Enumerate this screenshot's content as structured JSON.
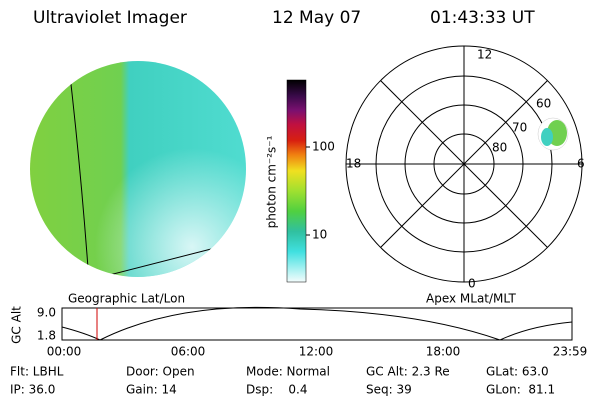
{
  "header": {
    "title": "Ultraviolet Imager",
    "date": "12 May 07",
    "time": "01:43:33 UT"
  },
  "colorbar": {
    "label": "photon cm⁻²s⁻¹",
    "ticks": [
      "100",
      "10"
    ]
  },
  "polar": {
    "hour_labels": [
      "12",
      "18",
      "6",
      "0"
    ],
    "lat_labels": [
      "60",
      "70",
      "80"
    ]
  },
  "captions": {
    "left": "Geographic Lat/Lon",
    "right": "Apex MLat/MLT"
  },
  "altitude_plot": {
    "ylabel": "GC Alt",
    "yticks": [
      "9.0",
      "1.8"
    ],
    "xticks": [
      "00:00",
      "06:00",
      "12:00",
      "18:00",
      "23:59"
    ]
  },
  "info": [
    [
      "Flt: LBHL",
      "IP: 36.0"
    ],
    [
      "Door: Open",
      "Gain: 14"
    ],
    [
      "Mode: Normal",
      "Dsp:    0.4"
    ],
    [
      "GC Alt: 2.3 Re",
      "Seq: 39"
    ],
    [
      "GLat: 63.0",
      "GLon:  81.1"
    ]
  ]
}
